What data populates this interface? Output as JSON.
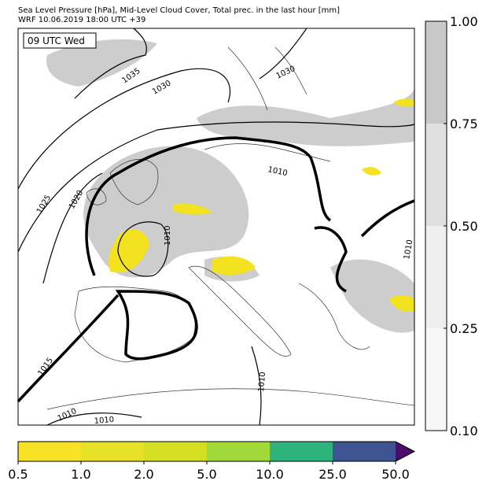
{
  "header": {
    "title": "Sea Level Pressure [hPa], Mid-Level Cloud Cover, Total prec. in the last hour [mm]",
    "subtitle": "WRF 10.06.2019 18:00 UTC +39"
  },
  "map": {
    "time_label": "09 UTC Wed",
    "isobar_labels": [
      "1035",
      "1030",
      "1030",
      "1025",
      "1020",
      "1010",
      "1010",
      "1010",
      "1015",
      "1010",
      "1010",
      "1010"
    ]
  },
  "cloud_colorbar": {
    "ticks": [
      "0.10",
      "0.25",
      "0.50",
      "0.75",
      "1.00"
    ],
    "colors": [
      "#f7f7f7",
      "#efefef",
      "#e0e0e0",
      "#c8c8c8"
    ]
  },
  "precip_colorbar": {
    "ticks": [
      "0.5",
      "1.0",
      "2.0",
      "5.0",
      "10.0",
      "25.0",
      "50.0"
    ],
    "colors": [
      "#f7e225",
      "#e7e228",
      "#d4df24",
      "#a2d93a",
      "#2eb37c",
      "#3e5391",
      "#4b0c6b"
    ]
  }
}
